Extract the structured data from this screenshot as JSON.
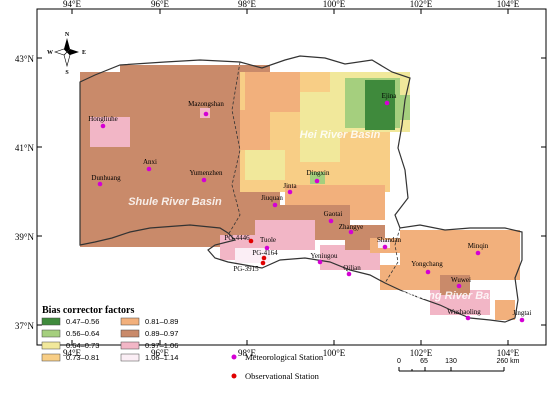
{
  "axes": {
    "lon_labels": [
      "94°E",
      "96°E",
      "98°E",
      "100°E",
      "102°E",
      "104°E"
    ],
    "lat_labels": [
      "43°N",
      "41°N",
      "39°N",
      "37°N"
    ]
  },
  "compass": {
    "n": "N",
    "s": "S",
    "e": "E",
    "w": "W"
  },
  "basins": {
    "hei": "Hei River Basin",
    "shule": "Shule River Basin",
    "shiyang": "Shiyang River Basin"
  },
  "legend": {
    "title": "Bias corrector factors",
    "classes": [
      {
        "label": "0.47–0.56",
        "color": "#3f8a3c"
      },
      {
        "label": "0.56–0.64",
        "color": "#a5cf7e"
      },
      {
        "label": "0.64–0.73",
        "color": "#f1e89b"
      },
      {
        "label": "0.73–0.81",
        "color": "#f8ce86"
      },
      {
        "label": "0.81–0.89",
        "color": "#f2b07c"
      },
      {
        "label": "0.89–0.97",
        "color": "#c98a6a"
      },
      {
        "label": "0.97–1.06",
        "color": "#f2b6c6"
      },
      {
        "label": "1.06–1.14",
        "color": "#fbeef5"
      }
    ],
    "station_types": [
      {
        "label": "Meteorological Station",
        "color": "#d400d4"
      },
      {
        "label": "Observational Station",
        "color": "#e00000"
      }
    ]
  },
  "scale_bar": {
    "ticks": [
      "0",
      "65",
      "130",
      "260 km"
    ]
  },
  "stations": {
    "meteorological": [
      {
        "name": "Hongliuhe"
      },
      {
        "name": "Mazongshan"
      },
      {
        "name": "Ejina"
      },
      {
        "name": "Anxi"
      },
      {
        "name": "Dunhuang"
      },
      {
        "name": "Yumenzhen"
      },
      {
        "name": "Dingxin"
      },
      {
        "name": "Jinta"
      },
      {
        "name": "Jiuquan"
      },
      {
        "name": "Gaotai"
      },
      {
        "name": "Zhangye"
      },
      {
        "name": "Shandan"
      },
      {
        "name": "Tuole"
      },
      {
        "name": "Yeniugou"
      },
      {
        "name": "Qilian"
      },
      {
        "name": "Minqin"
      },
      {
        "name": "Yongchang"
      },
      {
        "name": "Wuwei"
      },
      {
        "name": "Wushaoling"
      },
      {
        "name": "Jingtai"
      }
    ],
    "observational": [
      {
        "name": "PG-4446"
      },
      {
        "name": "PG-4164"
      },
      {
        "name": "PG-3915"
      }
    ]
  }
}
